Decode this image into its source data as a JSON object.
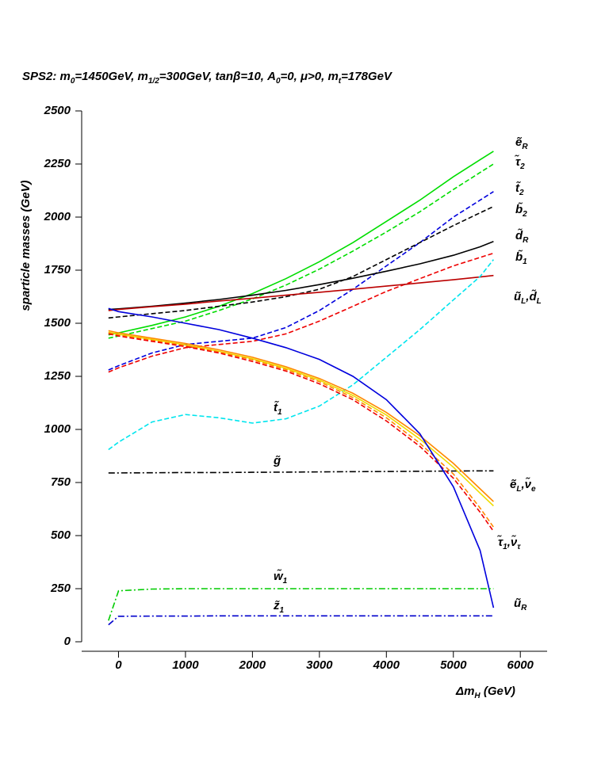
{
  "chart_data": {
    "type": "line",
    "title_parts": [
      "SPS2: m",
      "0",
      "=1450GeV, m",
      "1/2",
      "=300GeV, tanβ=10, A",
      "0",
      "=0, μ>0, m",
      "t",
      "=178GeV"
    ],
    "xlabel_parts": [
      "Δm",
      "H",
      " (GeV)"
    ],
    "ylabel": "sparticle masses (GeV)",
    "x": [
      -150,
      0,
      500,
      1000,
      1500,
      2000,
      2500,
      3000,
      3500,
      4000,
      4500,
      5000,
      5400,
      5600
    ],
    "xlim": [
      -550,
      6400
    ],
    "xticks": [
      0,
      1000,
      2000,
      3000,
      4000,
      5000,
      6000
    ],
    "ylim": [
      0,
      2500
    ],
    "yticks": [
      0,
      250,
      500,
      750,
      1000,
      1250,
      1500,
      1750,
      2000,
      2250,
      2500
    ],
    "series": [
      {
        "label_parts": [
          "ẽ",
          "R"
        ],
        "color": "#00dd00",
        "linestyle": "solid",
        "values": [
          1445,
          1455,
          1490,
          1530,
          1580,
          1640,
          1710,
          1790,
          1880,
          1980,
          2080,
          2190,
          2270,
          2310
        ]
      },
      {
        "label_parts": [
          "τ̃",
          "2"
        ],
        "color": "#00dd00",
        "linestyle": "dashed",
        "values": [
          1430,
          1440,
          1475,
          1510,
          1560,
          1615,
          1680,
          1755,
          1840,
          1930,
          2025,
          2130,
          2210,
          2250
        ]
      },
      {
        "label_parts": [
          "t̃",
          "2"
        ],
        "color": "#0000dd",
        "linestyle": "dashed",
        "values": [
          1280,
          1300,
          1360,
          1400,
          1415,
          1430,
          1480,
          1560,
          1660,
          1770,
          1880,
          2000,
          2080,
          2120
        ]
      },
      {
        "label_parts": [
          "b̃",
          "2"
        ],
        "color": "#000000",
        "linestyle": "dashed",
        "values": [
          1525,
          1530,
          1545,
          1560,
          1580,
          1600,
          1625,
          1660,
          1720,
          1800,
          1880,
          1960,
          2020,
          2050
        ]
      },
      {
        "label_parts": [
          "d̃",
          "R"
        ],
        "color": "#000000",
        "linestyle": "solid",
        "values": [
          1565,
          1568,
          1580,
          1595,
          1612,
          1632,
          1655,
          1682,
          1712,
          1745,
          1780,
          1820,
          1860,
          1885
        ]
      },
      {
        "label_parts": [
          "b̃",
          "1"
        ],
        "color": "#ee0000",
        "linestyle": "dashed",
        "values": [
          1270,
          1290,
          1345,
          1385,
          1400,
          1415,
          1450,
          1510,
          1580,
          1650,
          1710,
          1770,
          1810,
          1830
        ]
      },
      {
        "label_parts": [
          "ũ",
          "L",
          ",d̃",
          "L"
        ],
        "color": "#bb0000",
        "linestyle": "solid",
        "values": [
          1560,
          1565,
          1578,
          1590,
          1605,
          1618,
          1632,
          1646,
          1660,
          1675,
          1690,
          1705,
          1718,
          1725
        ]
      },
      {
        "label_parts": [
          "t̃",
          "1"
        ],
        "color": "#00e5ee",
        "linestyle": "dashed",
        "values": [
          905,
          940,
          1035,
          1070,
          1055,
          1030,
          1050,
          1110,
          1210,
          1340,
          1470,
          1610,
          1720,
          1800
        ]
      },
      {
        "label_parts": [
          "g̃"
        ],
        "color": "#000000",
        "linestyle": "dashdot",
        "values": [
          795,
          795,
          796,
          797,
          797,
          798,
          799,
          800,
          801,
          802,
          803,
          804,
          805,
          805
        ]
      },
      {
        "label_parts": [
          "ẽ",
          "L",
          ",ν̃",
          "e"
        ],
        "color": "#ff8800",
        "linestyle": "solid",
        "values": [
          1465,
          1455,
          1430,
          1405,
          1375,
          1340,
          1295,
          1240,
          1170,
          1080,
          970,
          840,
          720,
          660
        ]
      },
      {
        "color": "#eedd00",
        "linestyle": "solid",
        "values": [
          1458,
          1448,
          1424,
          1398,
          1368,
          1333,
          1288,
          1232,
          1160,
          1068,
          955,
          822,
          700,
          640
        ]
      },
      {
        "color": "#ff8800",
        "linestyle": "dashed",
        "values": [
          1455,
          1445,
          1420,
          1395,
          1365,
          1328,
          1282,
          1225,
          1150,
          1055,
          935,
          790,
          630,
          540
        ]
      },
      {
        "label_parts": [
          "τ̃",
          "1",
          ",ν̃",
          "τ"
        ],
        "color": "#ee0000",
        "linestyle": "dashed",
        "values": [
          1450,
          1440,
          1415,
          1390,
          1360,
          1320,
          1275,
          1215,
          1140,
          1040,
          920,
          770,
          610,
          520
        ]
      },
      {
        "label_parts": [
          "ũ",
          "R"
        ],
        "color": "#0000dd",
        "linestyle": "solid",
        "values": [
          1570,
          1555,
          1530,
          1500,
          1470,
          1430,
          1385,
          1330,
          1250,
          1140,
          980,
          730,
          430,
          160
        ]
      },
      {
        "label_parts": [
          "w̃",
          "1"
        ],
        "color": "#00cc00",
        "linestyle": "dashdot",
        "values": [
          100,
          240,
          248,
          250,
          250,
          250,
          250,
          250,
          250,
          250,
          250,
          250,
          250,
          250
        ]
      },
      {
        "label_parts": [
          "z̃",
          "1"
        ],
        "color": "#0000cc",
        "linestyle": "dashdot",
        "values": [
          80,
          120,
          121,
          121,
          122,
          122,
          122,
          122,
          122,
          122,
          122,
          122,
          122,
          122
        ]
      }
    ]
  }
}
